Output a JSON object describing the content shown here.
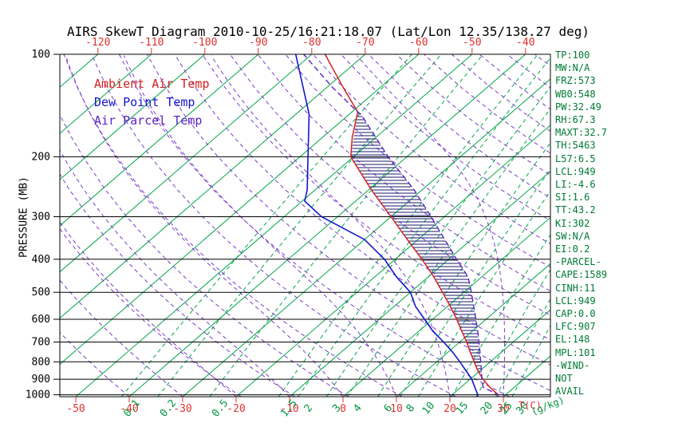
{
  "title": "AIRS SkewT Diagram 2010-10-25/16:21:18.07 (Lat/Lon 12.35/138.27 deg)",
  "legend": {
    "ambient": "Ambient Air Temp",
    "dewpoint": "Dew Point Temp",
    "parcel": "Air Parcel Temp"
  },
  "axes": {
    "pressure_axis_label": "PRESSURE (MB)",
    "pressure_ticks": [
      100,
      200,
      300,
      400,
      500,
      600,
      700,
      800,
      900,
      1000
    ],
    "top_temp_ticks": [
      -120,
      -110,
      -100,
      -90,
      -80,
      -70,
      -60,
      -50,
      -40
    ],
    "bottom_temp_ticks": [
      -50,
      -40,
      -30,
      -20,
      -10,
      0,
      10,
      20,
      30
    ],
    "temp_unit_label": "T(C)",
    "mixing_unit_label": "(g/kg)"
  },
  "side_panel": {
    "lines": [
      "TP:100",
      "MW:N/A",
      "FRZ:573",
      "WB0:548",
      "PW:32.49",
      "RH:67.3",
      "MAXT:32.7",
      "TH:5463",
      "L57:6.5",
      "LCL:949",
      "LI:-4.6",
      "SI:1.6",
      "TT:43.2",
      "KI:302",
      "SW:N/A",
      "EI:0.2",
      "-PARCEL-",
      "CAPE:1589",
      "CINH:11",
      "LCL:949",
      "CAP:0.0",
      "LFC:907",
      "EL:148",
      "MPL:101",
      "-WIND-",
      "NOT",
      "AVAIL"
    ]
  },
  "colors": {
    "isotherm": "#00a648",
    "mixing": "#00a648",
    "mixing_label": "#009440",
    "dry_adiabat": "#7a3cc8",
    "moist_adiabat": "#7a3cc8",
    "ambient": "#d42020",
    "dewpoint": "#1414cc",
    "parcel": "#5a23c8",
    "hatch": "#1a1a6e",
    "tick_label": "#e03030",
    "panel_text": "#007a33",
    "frame": "#000000"
  },
  "chart_data": {
    "type": "skewt",
    "pressure_range_mb": [
      100,
      1013
    ],
    "bottom_temp_range_c": [
      -50,
      30
    ],
    "top_temp_range_c": [
      -120,
      -40
    ],
    "isotherms_c": [
      -160,
      -150,
      -140,
      -130,
      -120,
      -110,
      -100,
      -90,
      -80,
      -70,
      -60,
      -50,
      -40,
      -30,
      -20,
      -10,
      0,
      10,
      20,
      30,
      40
    ],
    "mixing_ratio_lines_gkg": [
      0.1,
      0.2,
      0.5,
      1.5,
      2,
      3,
      4,
      6,
      8,
      10,
      15,
      20,
      25,
      30
    ],
    "dry_adiabats_c": [
      -20,
      -10,
      0,
      10,
      20,
      30,
      40,
      50,
      60,
      70,
      80,
      90,
      100,
      110,
      120,
      130,
      140,
      150,
      160,
      170,
      180,
      190,
      200
    ],
    "moist_adiabats_c": [
      -40,
      -30,
      -20,
      -10,
      0,
      10,
      20,
      30,
      40
    ],
    "sounding": {
      "temperature_c": [
        [
          1013,
          29.0
        ],
        [
          1000,
          28.6
        ],
        [
          950,
          25.4
        ],
        [
          900,
          22.4
        ],
        [
          850,
          19.6
        ],
        [
          800,
          17.0
        ],
        [
          750,
          14.2
        ],
        [
          700,
          11.3
        ],
        [
          650,
          8.0
        ],
        [
          600,
          4.5
        ],
        [
          550,
          0.5
        ],
        [
          500,
          -4.0
        ],
        [
          450,
          -9.0
        ],
        [
          400,
          -15.0
        ],
        [
          350,
          -22.0
        ],
        [
          300,
          -30.0
        ],
        [
          250,
          -39.5
        ],
        [
          200,
          -50.5
        ],
        [
          175,
          -54.5
        ],
        [
          150,
          -58.5
        ],
        [
          148,
          -58.8
        ],
        [
          125,
          -67.0
        ],
        [
          100,
          -77.5
        ]
      ],
      "dewpoint_c": [
        [
          1013,
          25.2
        ],
        [
          1000,
          24.8
        ],
        [
          950,
          22.6
        ],
        [
          900,
          20.3
        ],
        [
          850,
          17.4
        ],
        [
          800,
          14.3
        ],
        [
          750,
          10.9
        ],
        [
          700,
          7.0
        ],
        [
          650,
          2.6
        ],
        [
          600,
          -1.5
        ],
        [
          550,
          -6.0
        ],
        [
          500,
          -10.0
        ],
        [
          450,
          -16.0
        ],
        [
          400,
          -22.0
        ],
        [
          350,
          -30.0
        ],
        [
          300,
          -43.0
        ],
        [
          270,
          -49.5
        ],
        [
          250,
          -51.5
        ],
        [
          200,
          -58.5
        ],
        [
          150,
          -67.5
        ],
        [
          100,
          -83.0
        ]
      ],
      "parcel_c": [
        [
          1013,
          29.0
        ],
        [
          1000,
          28.6
        ],
        [
          949,
          24.1
        ],
        [
          900,
          22.2
        ],
        [
          850,
          20.3
        ],
        [
          800,
          18.2
        ],
        [
          750,
          16.0
        ],
        [
          700,
          13.6
        ],
        [
          650,
          11.0
        ],
        [
          600,
          8.1
        ],
        [
          550,
          4.9
        ],
        [
          500,
          1.4
        ],
        [
          450,
          -2.6
        ],
        [
          400,
          -8.5
        ],
        [
          350,
          -15.0
        ],
        [
          300,
          -22.5
        ],
        [
          250,
          -31.5
        ],
        [
          200,
          -43.5
        ],
        [
          150,
          -57.8
        ],
        [
          148,
          -58.8
        ],
        [
          125,
          -69.0
        ],
        [
          100,
          -81.5
        ]
      ]
    },
    "parcel_levels": {
      "lcl_mb": 949,
      "lfc_mb": 907,
      "el_mb": 148,
      "cape_jkg": 1589,
      "cinh_jkg": 11
    }
  }
}
